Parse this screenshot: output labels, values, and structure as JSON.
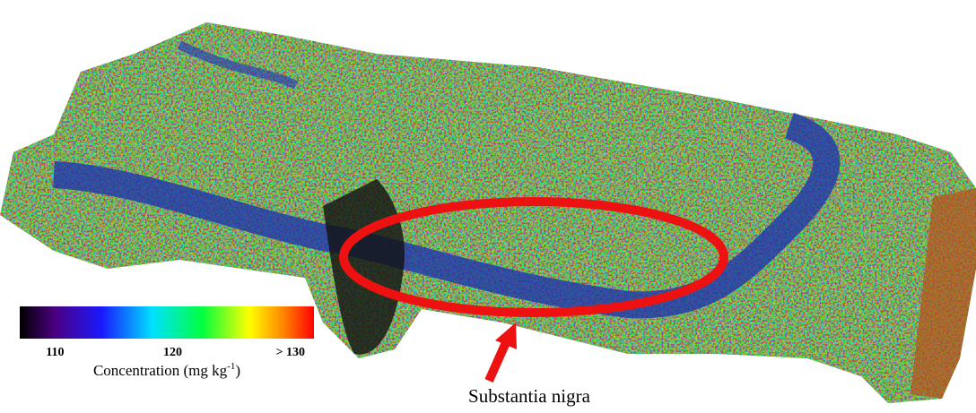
{
  "colorbar": {
    "lim": [
      107,
      132
    ],
    "ticks": [
      110,
      120,
      {
        "value": 130,
        "label": "> 130"
      }
    ],
    "label": "Concentration (mg kg",
    "label_sup": "-1",
    "label_end": ")"
  },
  "annotation": "Substantia nigra"
}
